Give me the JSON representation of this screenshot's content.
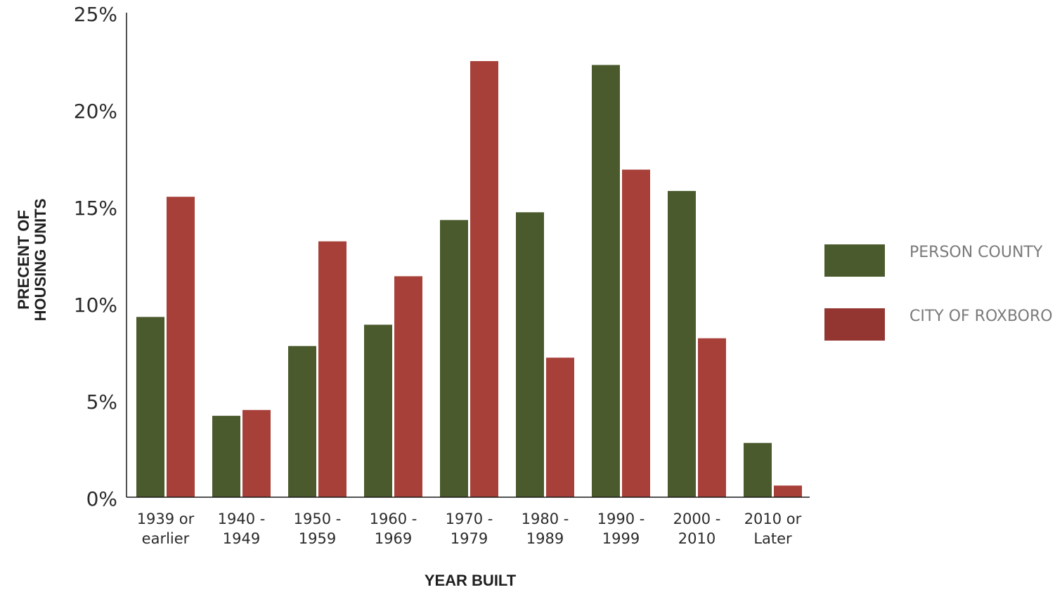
{
  "chart_data": {
    "type": "bar",
    "xlabel": "YEAR BUILT",
    "ylabel_lines": [
      "PRECENT OF",
      "HOUSING UNITS"
    ],
    "ylim": [
      0,
      25
    ],
    "yticks": [
      0,
      5,
      10,
      15,
      20,
      25
    ],
    "ytick_labels": [
      "0%",
      "5%",
      "10%",
      "15%",
      "20%",
      "25%"
    ],
    "grid": false,
    "legend_position": "right",
    "categories": [
      [
        "1939 or",
        "earlier"
      ],
      [
        "1940 -",
        "1949"
      ],
      [
        "1950 -",
        "1959"
      ],
      [
        "1960 -",
        "1969"
      ],
      [
        "1970 -",
        "1979"
      ],
      [
        "1980 -",
        "1989"
      ],
      [
        "1990 -",
        "1999"
      ],
      [
        "2000 -",
        "2010"
      ],
      [
        "2010 or",
        "Later"
      ]
    ],
    "series": [
      {
        "name": "PERSON COUNTY",
        "color": "#4b5a2c",
        "values": [
          9.3,
          4.2,
          7.8,
          8.9,
          14.3,
          14.7,
          22.3,
          15.8,
          2.8
        ]
      },
      {
        "name": "CITY OF ROXBORO",
        "color": "#a8403a",
        "values": [
          15.5,
          4.5,
          13.2,
          11.4,
          22.5,
          7.2,
          16.9,
          8.2,
          0.6
        ]
      }
    ],
    "legend_swatch_colors": [
      "#4b5a2c",
      "#933531"
    ]
  }
}
